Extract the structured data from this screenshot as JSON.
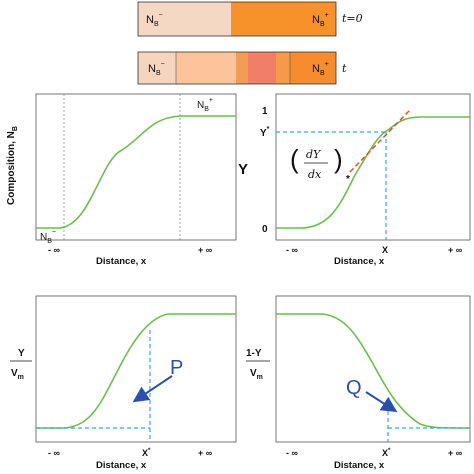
{
  "bar_top": {
    "left_label": "N_B^-",
    "right_label": "N_B^+",
    "time_label": "t=0",
    "colors": [
      "#f4d8c4",
      "#f7922a"
    ],
    "split_fraction": 0.5
  },
  "bar_bottom": {
    "left_label": "N_B^-",
    "right_label": "N_B^+",
    "time_label": "t",
    "colors": [
      "#f6d5bf",
      "#fcc49a",
      "#f39c56",
      "#ef8066",
      "#f59a48",
      "#f68c2e"
    ]
  },
  "panel1": {
    "ylabel": "Composition, N",
    "ylabel_sub": "B",
    "xlabel": "Distance, x",
    "x_left": "- ∞",
    "x_right": "+ ∞",
    "top_label": "N_B^+",
    "bottom_label": "N_B^-"
  },
  "panel2": {
    "ylabel": "Y",
    "xlabel": "Distance, x",
    "x_left": "- ∞",
    "x_right": "+ ∞",
    "x_mid": "X",
    "tick_top": "1",
    "tick_bottom": "0",
    "ystar": "Y*",
    "deriv_num": "dY",
    "deriv_den": "dx",
    "deriv_sub": "*"
  },
  "panel3": {
    "ylabel_num": "Y",
    "ylabel_den": "V_m",
    "xlabel": "Distance, x",
    "x_left": "- ∞",
    "x_right": "+ ∞",
    "x_mid": "X*",
    "area_label": "P"
  },
  "panel4": {
    "ylabel_num": "1-Y",
    "ylabel_den": "V_m",
    "xlabel": "Distance, x",
    "x_left": "- ∞",
    "x_right": "+ ∞",
    "x_mid": "X*",
    "area_label": "Q"
  },
  "colors": {
    "curve": "#6cbf4a",
    "dashed_blue": "#3aa6e0",
    "tangent": "#e0472a",
    "arrow": "#2a4fb0"
  }
}
